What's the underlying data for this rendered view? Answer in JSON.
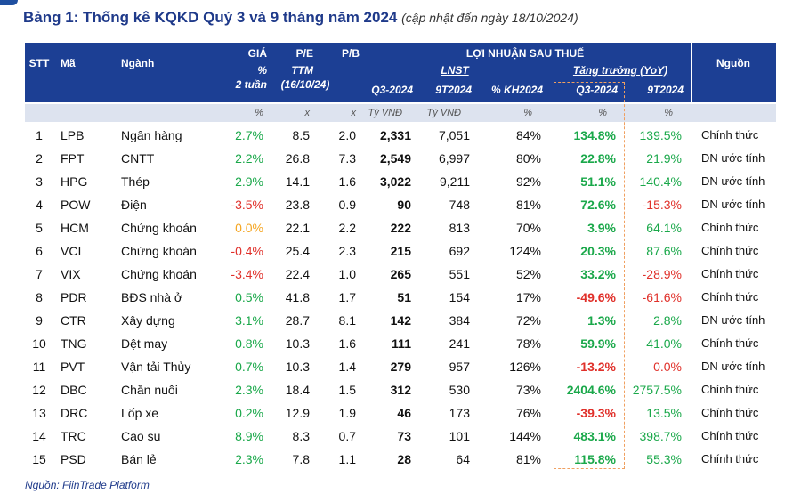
{
  "title": "Bảng 1: Thống kê KQKD Quý 3 và 9 tháng năm 2024",
  "subtitle": "(cập nhật đến ngày 18/10/2024)",
  "table": {
    "header": {
      "stt": "STT",
      "ma": "Mã",
      "nganh": "Ngành",
      "gia": "GIÁ",
      "gia_unit": "%",
      "gia_period": "2 tuần",
      "pe": "P/E",
      "pe_basis": "TTM",
      "pe_date": "(16/10/24)",
      "pb": "P/B",
      "profit": "LỢI NHUẬN SAU THUẾ",
      "lnst": "LNST",
      "growth": "Tăng trưởng (YoY)",
      "cols": [
        "Q3-2024",
        "9T2024",
        "% KH2024",
        "Q3-2024",
        "9T2024"
      ],
      "source_col": "Nguồn"
    },
    "units": [
      "%",
      "x",
      "x",
      "Tỷ VNĐ",
      "Tỷ VNĐ",
      "%",
      "%",
      "%"
    ],
    "rows": [
      [
        "1",
        "LPB",
        "Ngân hàng",
        "2.7%",
        "8.5",
        "2.0",
        "2,331",
        "7,051",
        "84%",
        "134.8%",
        "139.5%",
        "Chính thức"
      ],
      [
        "2",
        "FPT",
        "CNTT",
        "2.2%",
        "26.8",
        "7.3",
        "2,549",
        "6,997",
        "80%",
        "22.8%",
        "21.9%",
        "DN ước tính"
      ],
      [
        "3",
        "HPG",
        "Thép",
        "2.9%",
        "14.1",
        "1.6",
        "3,022",
        "9,211",
        "92%",
        "51.1%",
        "140.4%",
        "DN ước tính"
      ],
      [
        "4",
        "POW",
        "Điện",
        "-3.5%",
        "23.8",
        "0.9",
        "90",
        "748",
        "81%",
        "72.6%",
        "-15.3%",
        "DN ước tính"
      ],
      [
        "5",
        "HCM",
        "Chứng khoán",
        "0.0%",
        "22.1",
        "2.2",
        "222",
        "813",
        "70%",
        "3.9%",
        "64.1%",
        "Chính thức"
      ],
      [
        "6",
        "VCI",
        "Chứng khoán",
        "-0.4%",
        "25.4",
        "2.3",
        "215",
        "692",
        "124%",
        "20.3%",
        "87.6%",
        "Chính thức"
      ],
      [
        "7",
        "VIX",
        "Chứng khoán",
        "-3.4%",
        "22.4",
        "1.0",
        "265",
        "551",
        "52%",
        "33.2%",
        "-28.9%",
        "Chính thức"
      ],
      [
        "8",
        "PDR",
        "BĐS nhà ở",
        "0.5%",
        "41.8",
        "1.7",
        "51",
        "154",
        "17%",
        "-49.6%",
        "-61.6%",
        "Chính thức"
      ],
      [
        "9",
        "CTR",
        "Xây dựng",
        "3.1%",
        "28.7",
        "8.1",
        "142",
        "384",
        "72%",
        "1.3%",
        "2.8%",
        "DN ước tính"
      ],
      [
        "10",
        "TNG",
        "Dệt may",
        "0.8%",
        "10.3",
        "1.6",
        "111",
        "241",
        "78%",
        "59.9%",
        "41.0%",
        "Chính thức"
      ],
      [
        "11",
        "PVT",
        "Vận tải Thủy",
        "0.7%",
        "10.3",
        "1.4",
        "279",
        "957",
        "126%",
        "-13.2%",
        "0.0%",
        "DN ước tính"
      ],
      [
        "12",
        "DBC",
        "Chăn nuôi",
        "2.3%",
        "18.4",
        "1.5",
        "312",
        "530",
        "73%",
        "2404.6%",
        "2757.5%",
        "Chính thức"
      ],
      [
        "13",
        "DRC",
        "Lốp xe",
        "0.2%",
        "12.9",
        "1.9",
        "46",
        "173",
        "76%",
        "-39.3%",
        "13.5%",
        "Chính thức"
      ],
      [
        "14",
        "TRC",
        "Cao su",
        "8.9%",
        "8.3",
        "0.7",
        "73",
        "101",
        "144%",
        "483.1%",
        "398.7%",
        "Chính thức"
      ],
      [
        "15",
        "PSD",
        "Bán lẻ",
        "2.3%",
        "7.8",
        "1.1",
        "28",
        "64",
        "81%",
        "115.8%",
        "55.3%",
        "Chính thức"
      ]
    ]
  },
  "source": "Nguồn: FiinTrade Platform"
}
